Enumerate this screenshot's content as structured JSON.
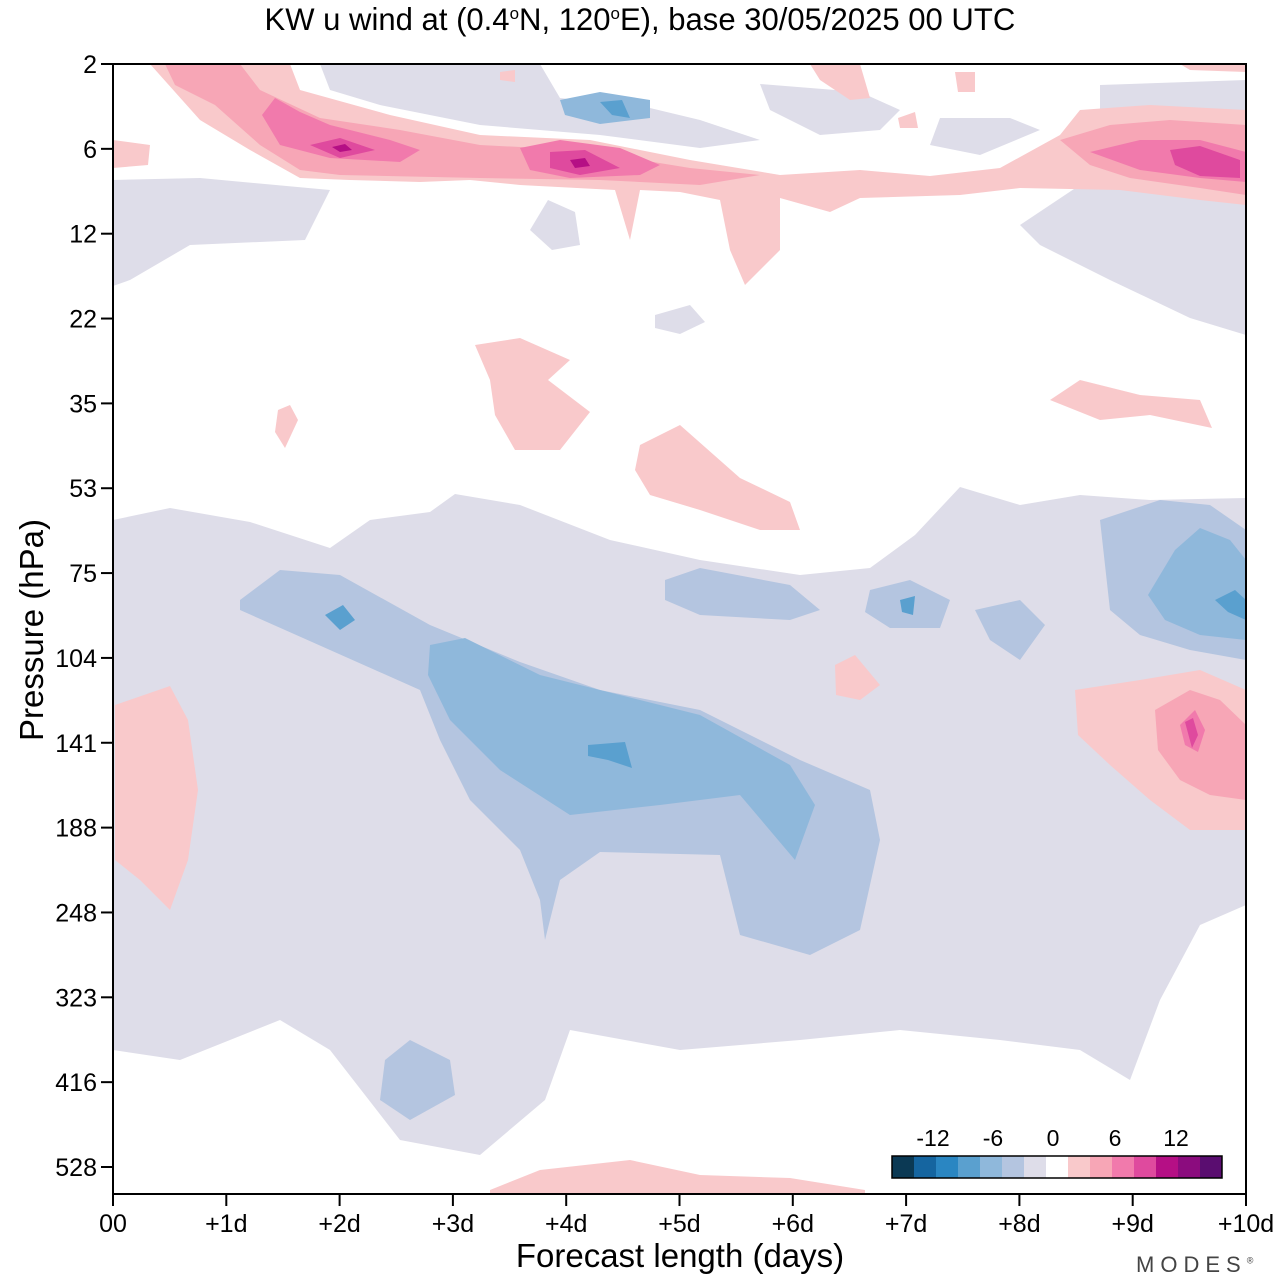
{
  "chart_data": {
    "type": "heatmap",
    "title": "KW u wind at (0.4°N, 120°E),  base 30/05/2025  00 UTC",
    "xlabel": "Forecast length (days)",
    "ylabel": "Pressure (hPa)",
    "x_ticks": [
      "00",
      "+1d",
      "+2d",
      "+3d",
      "+4d",
      "+5d",
      "+6d",
      "+7d",
      "+8d",
      "+9d",
      "+10d"
    ],
    "xlim": [
      0,
      10
    ],
    "y_ticks": [
      2,
      6,
      12,
      22,
      35,
      53,
      75,
      104,
      141,
      188,
      248,
      323,
      416,
      528
    ],
    "y_scale": "log-pressure (top = 2 hPa, bottom = 528 hPa)",
    "colorbar": {
      "tick_labels": [
        "-12",
        "-6",
        "0",
        "6",
        "12"
      ],
      "levels": [
        -21,
        -18,
        -15,
        -12,
        -9,
        -6,
        -3,
        0,
        3,
        6,
        9,
        12,
        15,
        18,
        21
      ],
      "colors": [
        "#0b3954",
        "#1565a0",
        "#2a86c2",
        "#5aa0cf",
        "#8fb8db",
        "#b4c5e0",
        "#dedde9",
        "#ffffff",
        "#f9c9cb",
        "#f7a6b6",
        "#f17aac",
        "#df4a9e",
        "#b50f85",
        "#8b0c7e",
        "#5a0d70"
      ],
      "position": "bottom-right"
    },
    "grid": false,
    "regions": [
      {
        "sign": "negative",
        "peak": -12,
        "x_days": [
          3.5,
          5.5
        ],
        "pressure_hPa": [
          100,
          220
        ],
        "note": "strongest easterly core near +4d, 141 hPa"
      },
      {
        "sign": "negative",
        "peak": -9,
        "x_days": [
          9.0,
          10.0
        ],
        "pressure_hPa": [
          55,
          110
        ]
      },
      {
        "sign": "negative",
        "peak": -3,
        "x_days": [
          0,
          10
        ],
        "pressure_hPa": [
          55,
          530
        ]
      },
      {
        "sign": "positive",
        "peak": 15,
        "x_days": [
          1.3,
          2.5
        ],
        "pressure_hPa": [
          3,
          7
        ]
      },
      {
        "sign": "positive",
        "peak": 15,
        "x_days": [
          3.5,
          5.5
        ],
        "pressure_hPa": [
          5,
          8
        ]
      },
      {
        "sign": "positive",
        "peak": 15,
        "x_days": [
          8.3,
          10.0
        ],
        "pressure_hPa": [
          5,
          8
        ]
      },
      {
        "sign": "positive",
        "peak": 9,
        "x_days": [
          9.0,
          10.0
        ],
        "pressure_hPa": [
          110,
          190
        ]
      },
      {
        "sign": "positive",
        "peak": 3,
        "x_days": [
          0.0,
          0.8
        ],
        "pressure_hPa": [
          115,
          250
        ]
      }
    ]
  },
  "brand": "MODES",
  "brand_mark": "®"
}
